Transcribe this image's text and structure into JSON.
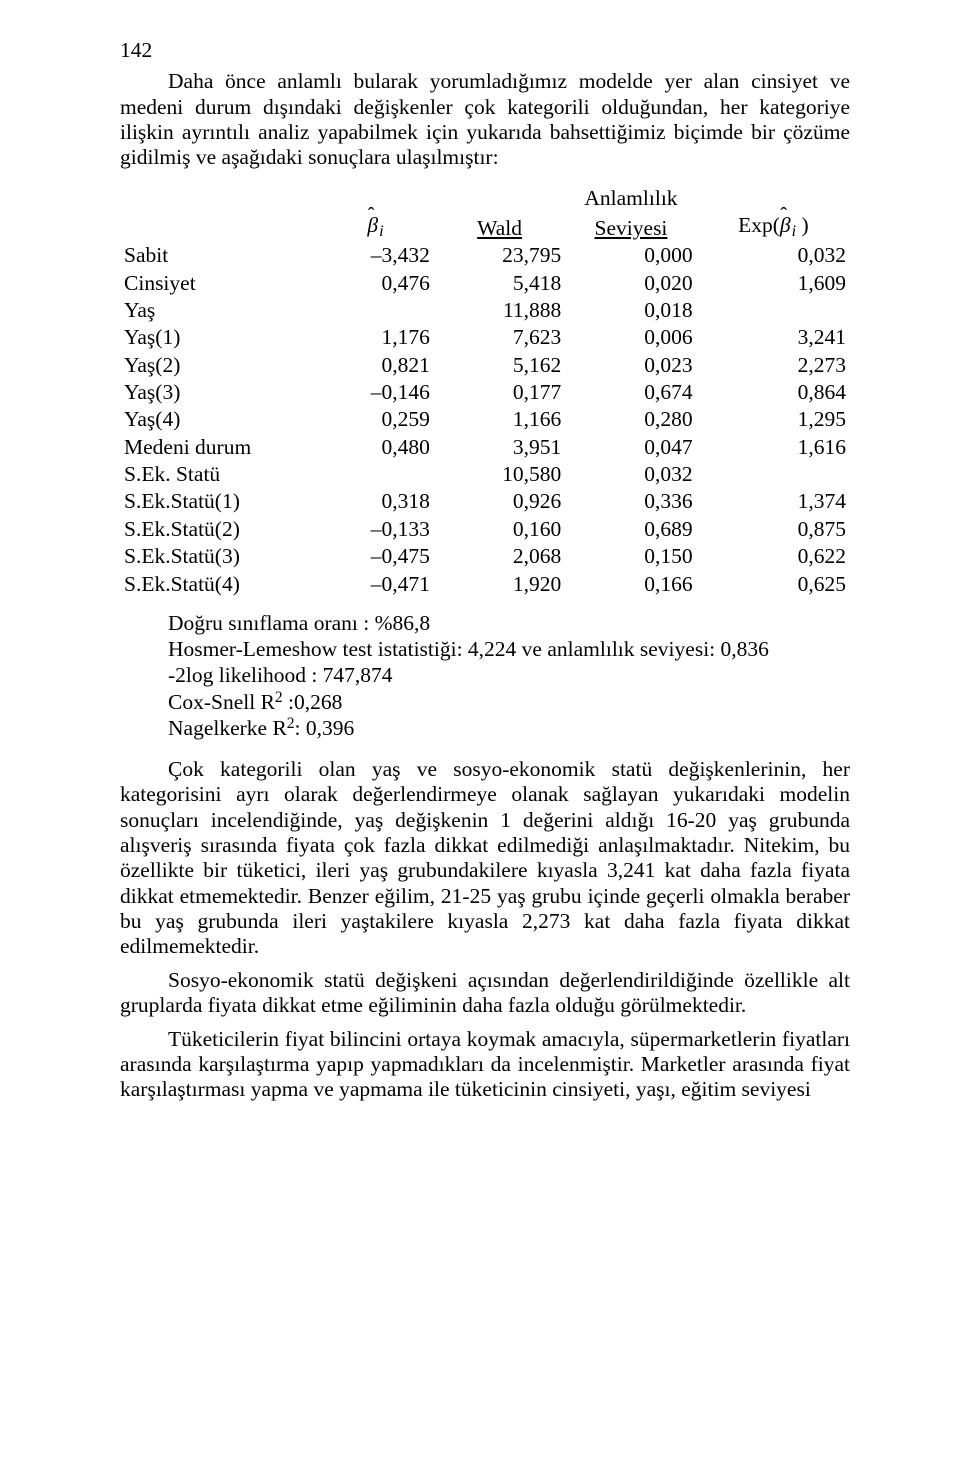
{
  "page_number": "142",
  "intro_para": "Daha önce anlamlı bularak yorumladığımız modelde yer alan cinsiyet ve medeni durum dışındaki değişkenler çok kategorili olduğundan, her kategoriye ilişkin ayrıntılı analiz yapabilmek için yukarıda bahsettiğimiz biçimde bir çözüme gidilmiş ve aşağıdaki sonuçlara ulaşılmıştır:",
  "table": {
    "header": {
      "anlam": "Anlamlılık",
      "wald": "Wald",
      "seviyesi": "Seviyesi",
      "exp_pre": "Exp(",
      "exp_post": " )"
    },
    "rows": [
      {
        "label": "Sabit",
        "b": "–3,432",
        "w": "23,795",
        "s": "0,000",
        "e": "0,032"
      },
      {
        "label": "Cinsiyet",
        "b": "0,476",
        "w": "5,418",
        "s": "0,020",
        "e": "1,609"
      },
      {
        "label": "Yaş",
        "b": "",
        "w": "11,888",
        "s": "0,018",
        "e": ""
      },
      {
        "label": "Yaş(1)",
        "b": "1,176",
        "w": "7,623",
        "s": "0,006",
        "e": "3,241"
      },
      {
        "label": "Yaş(2)",
        "b": "0,821",
        "w": "5,162",
        "s": "0,023",
        "e": "2,273"
      },
      {
        "label": "Yaş(3)",
        "b": "–0,146",
        "w": "0,177",
        "s": "0,674",
        "e": "0,864"
      },
      {
        "label": "Yaş(4)",
        "b": "0,259",
        "w": "1,166",
        "s": "0,280",
        "e": "1,295"
      },
      {
        "label": "Medeni durum",
        "b": "0,480",
        "w": "3,951",
        "s": "0,047",
        "e": "1,616"
      },
      {
        "label": "S.Ek. Statü",
        "b": "",
        "w": "10,580",
        "s": "0,032",
        "e": ""
      },
      {
        "label": "S.Ek.Statü(1)",
        "b": "0,318",
        "w": "0,926",
        "s": "0,336",
        "e": "1,374"
      },
      {
        "label": "S.Ek.Statü(2)",
        "b": "–0,133",
        "w": "0,160",
        "s": "0,689",
        "e": "0,875"
      },
      {
        "label": "S.Ek.Statü(3)",
        "b": "–0,475",
        "w": "2,068",
        "s": "0,150",
        "e": "0,622"
      },
      {
        "label": "S.Ek.Statü(4)",
        "b": "–0,471",
        "w": "1,920",
        "s": "0,166",
        "e": "0,625"
      }
    ]
  },
  "diag": {
    "l1": "Doğru sınıflama oranı : %86,8",
    "l2": "Hosmer-Lemeshow test istatistiği: 4,224  ve  anlamlılık seviyesi: 0,836",
    "l3": "-2log likelihood : 747,874",
    "l4_pre": "Cox-Snell R",
    "l4_post": " :0,268",
    "l5_pre": "Nagelkerke R",
    "l5_post": ": 0,396"
  },
  "para2": "Çok kategorili olan yaş ve sosyo-ekonomik statü değişkenlerinin, her kategorisini ayrı olarak değerlendirmeye olanak sağlayan yukarıdaki modelin sonuçları incelendiğinde, yaş değişkenin 1 değerini aldığı 16-20 yaş grubunda alışveriş sırasında fiyata çok fazla dikkat edilmediği anlaşılmaktadır. Nitekim, bu özellikte bir tüketici, ileri yaş grubundakilere kıyasla 3,241 kat daha fazla fiyata dikkat etmemektedir. Benzer eğilim, 21-25 yaş grubu içinde geçerli olmakla beraber bu yaş grubunda ileri yaştakilere kıyasla 2,273 kat daha fazla fiyata dikkat edilmemektedir.",
  "para3": "Sosyo-ekonomik statü değişkeni açısından değerlendirildiğinde özellikle alt gruplarda fiyata dikkat etme eğiliminin daha fazla olduğu görülmektedir.",
  "para4": "Tüketicilerin fiyat bilincini ortaya koymak amacıyla, süpermarketlerin fiyatları arasında karşılaştırma yapıp yapmadıkları da incelenmiştir. Marketler arasında fiyat karşılaştırması yapma ve yapmama ile tüketicinin cinsiyeti, yaşı, eğitim seviyesi"
}
